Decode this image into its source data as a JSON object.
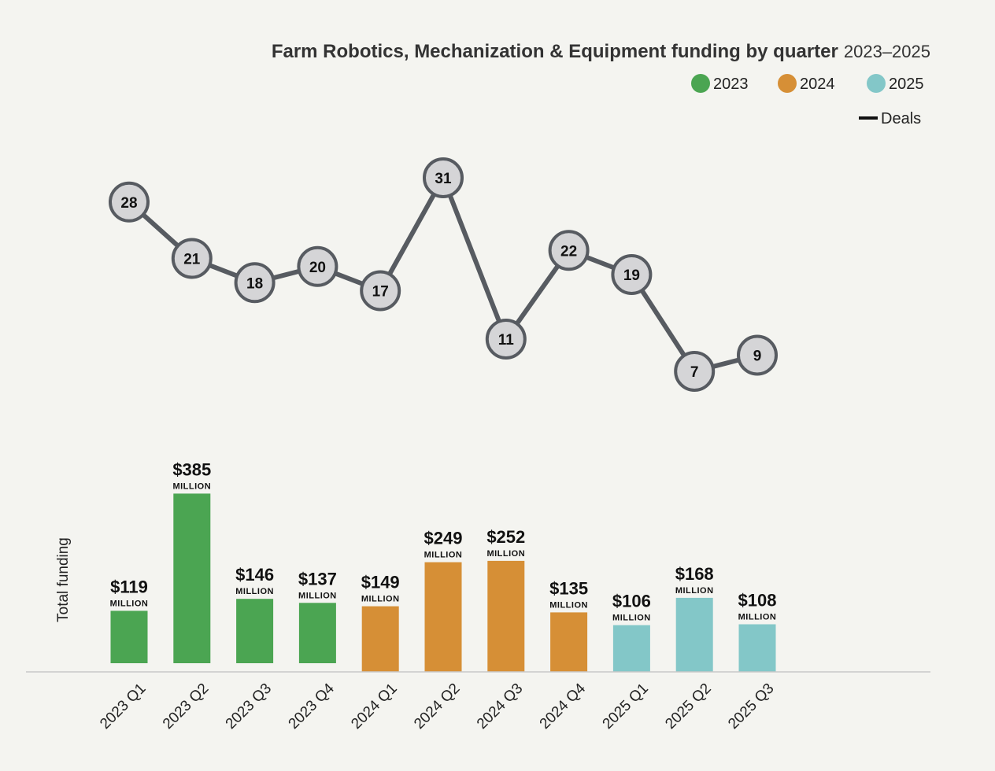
{
  "chart_data": {
    "type": "bar+line",
    "title": "Farm Robotics, Mechanization & Equipment funding by quarter",
    "subtitle": "2023–2025",
    "ylabel": "Total funding",
    "categories": [
      "2023 Q1",
      "2023 Q2",
      "2023 Q3",
      "2023 Q4",
      "2024 Q1",
      "2024 Q2",
      "2024 Q3",
      "2024 Q4",
      "2025 Q1",
      "2025 Q2",
      "2025 Q3"
    ],
    "groups": [
      "2023",
      "2023",
      "2023",
      "2023",
      "2024",
      "2024",
      "2024",
      "2024",
      "2025",
      "2025",
      "2025"
    ],
    "funding": {
      "name": "Total funding",
      "unit": "MILLION",
      "values": [
        119,
        385,
        146,
        137,
        149,
        249,
        252,
        135,
        106,
        168,
        108
      ],
      "labels": [
        "$119",
        "$385",
        "$146",
        "$137",
        "$149",
        "$249",
        "$252",
        "$135",
        "$106",
        "$168",
        "$108"
      ]
    },
    "deals": {
      "name": "Deals",
      "values": [
        28,
        21,
        18,
        20,
        17,
        31,
        11,
        22,
        19,
        7,
        9
      ]
    },
    "legend": [
      {
        "label": "2023",
        "color": "#4ba552"
      },
      {
        "label": "2024",
        "color": "#d68f36"
      },
      {
        "label": "2025",
        "color": "#83c7c8"
      }
    ],
    "legend_deals_label": "Deals",
    "colors": {
      "2023": "#4ba552",
      "2024": "#d68f36",
      "2025": "#83c7c8",
      "deal_line": "#575b61",
      "deal_marker_fill": "#d5d5d7",
      "axis": "#c8c8c8"
    }
  }
}
